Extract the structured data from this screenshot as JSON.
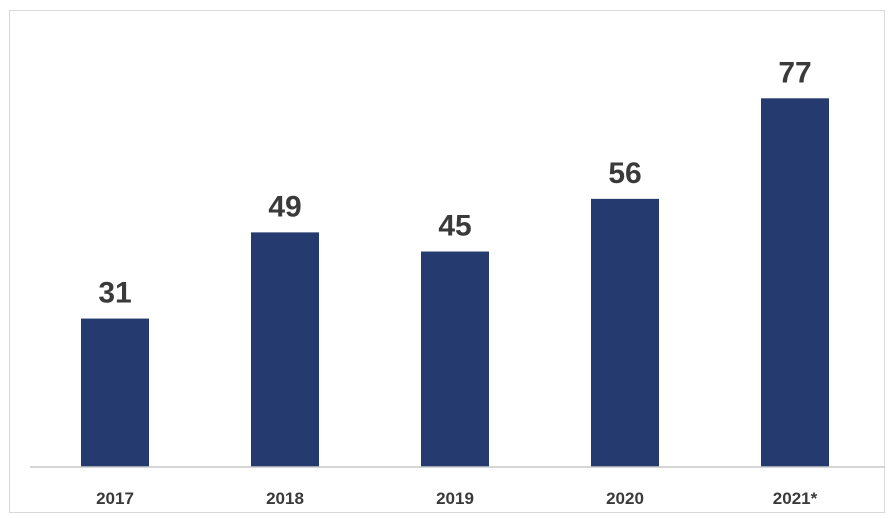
{
  "chart_data": {
    "type": "bar",
    "categories": [
      "2017",
      "2018",
      "2019",
      "2020",
      "2021*"
    ],
    "values": [
      31,
      49,
      45,
      56,
      77
    ],
    "data_labels": [
      "31",
      "49",
      "45",
      "56",
      "77"
    ],
    "title": "",
    "xlabel": "",
    "ylabel": "",
    "ylim": [
      0,
      85
    ],
    "grid": false,
    "legend": "none",
    "bar_color": "#253a6e",
    "label_color": "#3a3a3a"
  }
}
